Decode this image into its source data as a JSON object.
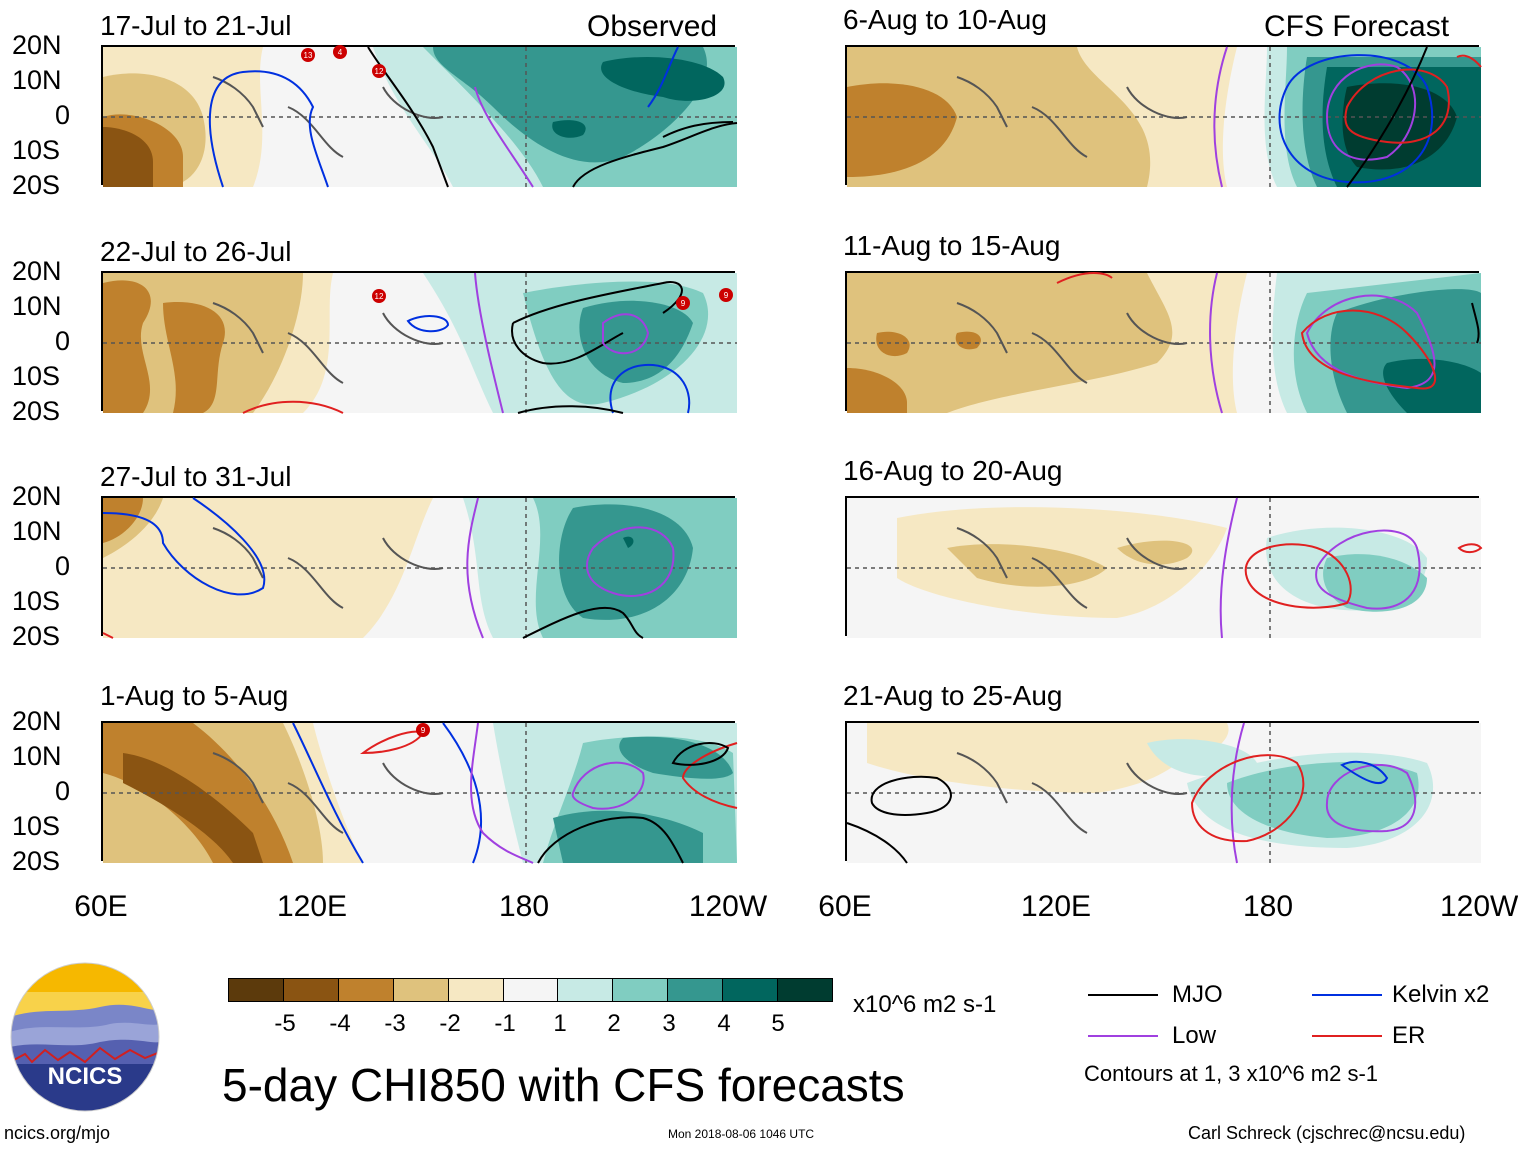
{
  "columns": {
    "left_header": "Observed",
    "right_header": "CFS Forecast"
  },
  "panels_left": [
    {
      "title": "17-Jul to 21-Jul"
    },
    {
      "title": "22-Jul to 26-Jul"
    },
    {
      "title": "27-Jul to 31-Jul"
    },
    {
      "title": "1-Aug to 5-Aug"
    }
  ],
  "panels_right": [
    {
      "title": "6-Aug to 10-Aug"
    },
    {
      "title": "11-Aug to 15-Aug"
    },
    {
      "title": "16-Aug to 20-Aug"
    },
    {
      "title": "21-Aug to 25-Aug"
    }
  ],
  "lat_labels": [
    "20N",
    "10N",
    "0",
    "10S",
    "20S"
  ],
  "lon_labels": [
    "60E",
    "120E",
    "180",
    "120W"
  ],
  "lon_labels_right": [
    "60E",
    "120E",
    "180",
    "120W"
  ],
  "colorbar": {
    "unit": "x10^6 m2 s-1",
    "ticks": [
      "-5",
      "-4",
      "-3",
      "-2",
      "-1",
      "1",
      "2",
      "3",
      "4",
      "5"
    ],
    "colors": [
      "#5c3a0c",
      "#8a5412",
      "#bf812d",
      "#dfc27d",
      "#f6e8c3",
      "#f5f5f5",
      "#c7eae5",
      "#80cdc1",
      "#35978f",
      "#01665e",
      "#003c30"
    ]
  },
  "legend": {
    "mjo": "MJO",
    "low": "Low",
    "kelvin": "Kelvin x2",
    "er": "ER",
    "note": "Contours at 1, 3 x10^6 m2 s-1",
    "mjo_color": "#000000",
    "low_color": "#a040e0",
    "kelvin_color": "#0030e0",
    "er_color": "#e02020"
  },
  "logo": {
    "text": "NCICS"
  },
  "main_title": "5-day CHI850 with CFS forecasts",
  "footer": {
    "site": "ncics.org/mjo",
    "timestamp": "Mon 2018-08-06 1046 UTC",
    "author": "Carl Schreck (cjschrec@ncsu.edu)"
  },
  "storms": [
    {
      "panel": 0,
      "label": "13"
    },
    {
      "panel": 0,
      "label": "4"
    },
    {
      "panel": 0,
      "label": "12"
    },
    {
      "panel": 1,
      "label": "12"
    },
    {
      "panel": 1,
      "label": "9"
    },
    {
      "panel": 1,
      "label": "9"
    },
    {
      "panel": 3,
      "label": "9"
    }
  ]
}
